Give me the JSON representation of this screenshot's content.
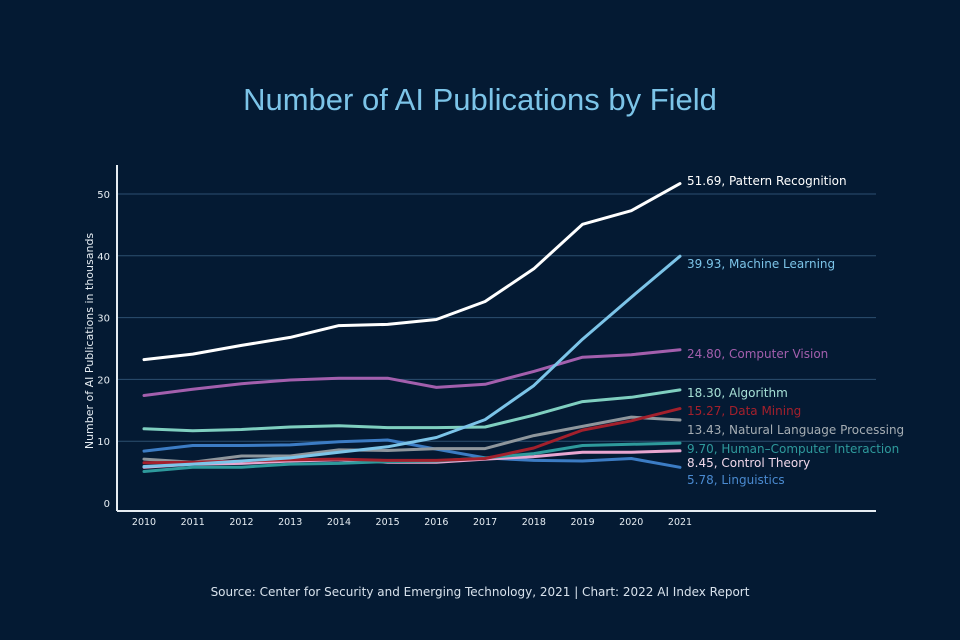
{
  "chart_data": {
    "type": "line",
    "title": "Number of AI Publications by Field",
    "xlabel": "",
    "ylabel": "Number of AI Publications in thousands",
    "ylim": [
      0,
      55
    ],
    "yticks": [
      0,
      10,
      20,
      30,
      40,
      50
    ],
    "grid": true,
    "legend": "end-of-line labels (right)",
    "x": [
      "2010",
      "2011",
      "2012",
      "2013",
      "2014",
      "2015",
      "2016",
      "2017",
      "2018",
      "2019",
      "2020",
      "2021"
    ],
    "series": [
      {
        "name": "Pattern Recognition",
        "label": "51.69, Pattern Recognition",
        "color": "#ffffff",
        "label_color": "#ffffff",
        "values": [
          23.2,
          24.1,
          25.5,
          26.8,
          28.7,
          28.9,
          29.7,
          32.6,
          37.9,
          45.1,
          47.3,
          51.69
        ]
      },
      {
        "name": "Machine Learning",
        "label": "39.93, Machine Learning",
        "color": "#7cc4e8",
        "label_color": "#7cc4e8",
        "values": [
          5.9,
          6.3,
          6.8,
          7.3,
          8.2,
          9.1,
          10.6,
          13.5,
          19.0,
          26.5,
          33.3,
          39.93
        ]
      },
      {
        "name": "Computer Vision",
        "label": "24.80, Computer Vision",
        "color": "#a35fad",
        "label_color": "#a35fad",
        "values": [
          17.4,
          18.4,
          19.3,
          19.9,
          20.2,
          20.2,
          18.7,
          19.2,
          21.3,
          23.6,
          24.0,
          24.8
        ]
      },
      {
        "name": "Algorithm",
        "label": "18.30, Algorithm",
        "color": "#7fcfc0",
        "label_color": "#a7e0d6",
        "values": [
          12.0,
          11.7,
          11.9,
          12.3,
          12.5,
          12.2,
          12.2,
          12.3,
          14.2,
          16.4,
          17.1,
          18.3
        ]
      },
      {
        "name": "Data Mining",
        "label": "15.27, Data Mining",
        "color": "#a3202c",
        "label_color": "#a3202c",
        "values": [
          6.5,
          6.6,
          6.8,
          7.0,
          7.1,
          6.9,
          6.9,
          7.2,
          8.9,
          11.8,
          13.3,
          15.27
        ]
      },
      {
        "name": "Natural Language Processing",
        "label": "13.43, Natural Language Processing",
        "color": "#8e969c",
        "label_color": "#a5adb3",
        "values": [
          7.1,
          6.6,
          7.6,
          7.6,
          8.6,
          8.5,
          8.8,
          8.8,
          10.9,
          12.4,
          13.9,
          13.43
        ]
      },
      {
        "name": "Human-Computer Interaction",
        "label": "9.70, Human–Computer Interaction",
        "color": "#2e9a9c",
        "label_color": "#2e9a9c",
        "values": [
          5.1,
          5.8,
          5.8,
          6.3,
          6.4,
          6.7,
          6.8,
          7.3,
          8.0,
          9.3,
          9.5,
          9.7
        ]
      },
      {
        "name": "Control Theory",
        "label": "8.45, Control Theory",
        "color": "#e8a6d0",
        "label_color": "#f0d8ea",
        "values": [
          5.8,
          6.3,
          6.4,
          6.8,
          7.0,
          6.6,
          6.6,
          7.1,
          7.5,
          8.2,
          8.2,
          8.45
        ]
      },
      {
        "name": "Linguistics",
        "label": "5.78, Linguistics",
        "color": "#3c7cc4",
        "label_color": "#4a8ad0",
        "values": [
          8.4,
          9.3,
          9.3,
          9.4,
          9.9,
          10.2,
          8.7,
          7.3,
          6.9,
          6.8,
          7.2,
          5.78
        ]
      }
    ]
  },
  "footer": {
    "source": "Source: Center for Security and Emerging Technology, 2021 | Chart: 2022 AI Index Report"
  }
}
